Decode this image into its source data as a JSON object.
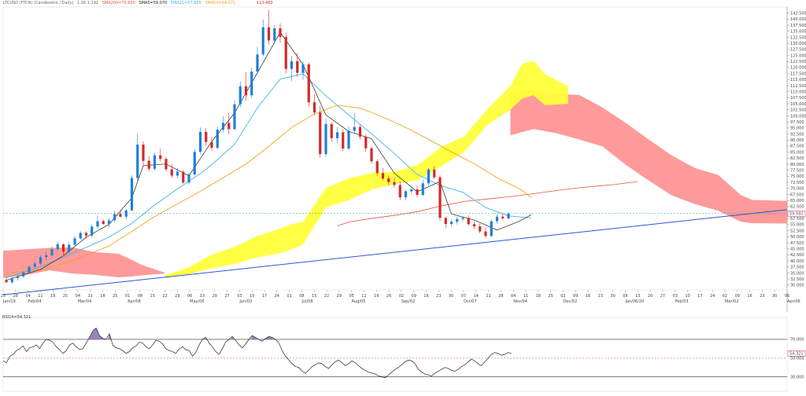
{
  "header": {
    "symbol": "LTCUSD (FTCN) (Candlestick / Daily)",
    "mode": "Daily",
    "info": "1:26 1:192",
    "sma200": "SMA200=70.600",
    "sma5": "SMA5=59.070",
    "ema21": "EMA21=57.805",
    "sma50": "SMA50=64.071",
    "price_label": "113.460"
  },
  "colors": {
    "up": "#1e7fd6",
    "down": "#d62728",
    "cloud_bull": "#ffff3a",
    "cloud_bear": "#ff8f8f",
    "sma200": "#e8523a",
    "sma50": "#f5a21b",
    "ema21": "#44b6e6",
    "sma5": "#222222",
    "trend": "#2a56d6",
    "rsi": "#222222"
  },
  "rsi_label": "RSI14=54.321",
  "last_price_tag": "59.592",
  "chart_data": {
    "type": "candlestick",
    "title": "",
    "ylim": [
      28,
      145
    ],
    "y_ticks": [
      "142.500",
      "140.000",
      "137.500",
      "135.000",
      "132.500",
      "130.000",
      "127.500",
      "125.000",
      "122.500",
      "120.000",
      "117.500",
      "115.000",
      "112.500",
      "110.000",
      "107.500",
      "105.000",
      "102.500",
      "100.000",
      "97.500",
      "95.000",
      "92.500",
      "90.000",
      "87.500",
      "85.000",
      "82.500",
      "80.000",
      "77.500",
      "75.000",
      "72.500",
      "70.000",
      "67.500",
      "65.000",
      "62.500",
      "60.000",
      "57.500",
      "55.000",
      "52.500",
      "50.000",
      "47.500",
      "45.000",
      "42.500",
      "40.000",
      "37.500",
      "35.000",
      "32.500",
      "30.000"
    ],
    "x_ticks": [
      "25",
      "28",
      "04",
      "11",
      "18",
      "25",
      "04",
      "11",
      "18",
      "25",
      "01",
      "08",
      "15",
      "22",
      "29",
      "06",
      "13",
      "20",
      "27",
      "03",
      "10",
      "17",
      "24",
      "01",
      "08",
      "15",
      "22",
      "29",
      "05",
      "12",
      "19",
      "26",
      "02",
      "09",
      "16",
      "23",
      "30",
      "07",
      "14",
      "21",
      "28",
      "04",
      "11",
      "18",
      "25",
      "02",
      "09",
      "16",
      "23",
      "30",
      "06",
      "13",
      "20",
      "27",
      "03",
      "10",
      "17",
      "24",
      "02",
      "09",
      "16",
      "23",
      "30",
      "06"
    ],
    "x_months": [
      {
        "label": "Jan/19",
        "i": 0
      },
      {
        "label": "Feb/04",
        "i": 2
      },
      {
        "label": "Mar/04",
        "i": 6
      },
      {
        "label": "Apr/08",
        "i": 10
      },
      {
        "label": "May/06",
        "i": 15
      },
      {
        "label": "Jun/03",
        "i": 19
      },
      {
        "label": "Jul/08",
        "i": 24
      },
      {
        "label": "Aug/05",
        "i": 28
      },
      {
        "label": "Sep/02",
        "i": 32
      },
      {
        "label": "Oct/07",
        "i": 37
      },
      {
        "label": "Nov/04",
        "i": 41
      },
      {
        "label": "Dec/02",
        "i": 45
      },
      {
        "label": "Jan/06/20",
        "i": 50
      },
      {
        "label": "Feb/03",
        "i": 54
      },
      {
        "label": "Mar/02",
        "i": 58
      },
      {
        "label": "Apr/06",
        "i": 63
      }
    ],
    "candles": [
      [
        32.1,
        33.4,
        30.8,
        31.2
      ],
      [
        31.2,
        33.5,
        30.5,
        32.9
      ],
      [
        32.9,
        34.2,
        31.8,
        33.6
      ],
      [
        33.6,
        35.8,
        33.2,
        35.3
      ],
      [
        35.3,
        38.2,
        34.6,
        37.6
      ],
      [
        37.6,
        39.8,
        36.9,
        38.9
      ],
      [
        38.9,
        42.3,
        38.1,
        41.6
      ],
      [
        41.6,
        43.8,
        40.2,
        42.3
      ],
      [
        42.3,
        45.9,
        41.5,
        44.8
      ],
      [
        44.8,
        48.1,
        44.1,
        46.9
      ],
      [
        46.9,
        47.2,
        42.5,
        43.8
      ],
      [
        43.8,
        47.8,
        43.0,
        46.7
      ],
      [
        46.7,
        50.4,
        45.9,
        49.3
      ],
      [
        49.3,
        52.4,
        48.7,
        51.6
      ],
      [
        51.6,
        52.3,
        49.2,
        50.5
      ],
      [
        50.5,
        55.1,
        49.8,
        54.2
      ],
      [
        54.2,
        58.8,
        53.1,
        56.4
      ],
      [
        56.4,
        57.2,
        54.8,
        55.3
      ],
      [
        55.3,
        57.6,
        53.9,
        56.8
      ],
      [
        56.8,
        60.8,
        56.1,
        59.4
      ],
      [
        59.4,
        61.2,
        57.9,
        58.3
      ],
      [
        58.3,
        61.5,
        57.1,
        60.9
      ],
      [
        60.9,
        75.4,
        60.5,
        74.3
      ],
      [
        74.3,
        92.6,
        72.9,
        88.1
      ],
      [
        88.1,
        89.4,
        79.3,
        81.4
      ],
      [
        81.4,
        83.2,
        77.2,
        78.1
      ],
      [
        78.1,
        84.8,
        77.4,
        83.7
      ],
      [
        83.7,
        86.4,
        81.2,
        82.2
      ],
      [
        82.2,
        83.1,
        77.1,
        77.9
      ],
      [
        77.9,
        80.1,
        74.2,
        75.3
      ],
      [
        75.3,
        78.4,
        74.1,
        76.9
      ],
      [
        76.9,
        77.6,
        71.8,
        72.4
      ],
      [
        72.4,
        76.6,
        71.7,
        75.8
      ],
      [
        75.8,
        86.3,
        75.2,
        85.1
      ],
      [
        85.1,
        95.2,
        84.3,
        93.4
      ],
      [
        93.4,
        94.8,
        87.8,
        89.2
      ],
      [
        89.2,
        91.4,
        85.6,
        86.8
      ],
      [
        86.8,
        95.6,
        86.1,
        94.3
      ],
      [
        94.3,
        99.8,
        93.1,
        97.1
      ],
      [
        97.1,
        101.2,
        92.3,
        94.5
      ],
      [
        94.5,
        106.6,
        94.1,
        104.8
      ],
      [
        104.8,
        114.2,
        103.6,
        112.2
      ],
      [
        112.2,
        118.1,
        106.2,
        108.5
      ],
      [
        108.5,
        119.8,
        107.4,
        118.3
      ],
      [
        118.3,
        128.6,
        117.2,
        125.4
      ],
      [
        125.4,
        139.9,
        124.6,
        136.6
      ],
      [
        136.6,
        143.8,
        129.5,
        131.2
      ],
      [
        131.2,
        137.6,
        130.4,
        136.2
      ],
      [
        136.2,
        138.3,
        130.2,
        132.6
      ],
      [
        132.6,
        134.5,
        117.5,
        119.4
      ],
      [
        119.4,
        124.8,
        114.3,
        122.6
      ],
      [
        122.6,
        126.1,
        116.2,
        117.8
      ],
      [
        117.8,
        122.5,
        114.8,
        121.3
      ],
      [
        121.3,
        122.1,
        103.8,
        105.6
      ],
      [
        105.6,
        108.9,
        100.1,
        101.4
      ],
      [
        101.4,
        104.1,
        82.6,
        84.2
      ],
      [
        84.2,
        98.8,
        83.1,
        96.6
      ],
      [
        96.6,
        97.4,
        89.2,
        90.8
      ],
      [
        90.8,
        95.3,
        88.6,
        93.2
      ],
      [
        93.2,
        94.5,
        85.4,
        86.5
      ],
      [
        86.5,
        95.6,
        85.7,
        93.8
      ],
      [
        93.8,
        101.3,
        92.6,
        95.4
      ],
      [
        95.4,
        96.2,
        90.1,
        91.4
      ],
      [
        91.4,
        92.5,
        85.1,
        86.6
      ],
      [
        86.6,
        87.3,
        80.3,
        81.2
      ],
      [
        81.2,
        82.1,
        75.1,
        76.3
      ],
      [
        76.3,
        78.4,
        73.2,
        74.1
      ],
      [
        74.1,
        75.3,
        71.2,
        72.6
      ],
      [
        72.6,
        74.4,
        70.1,
        71.4
      ],
      [
        71.4,
        72.9,
        65.2,
        66.3
      ],
      [
        66.3,
        69.5,
        65.1,
        68.8
      ],
      [
        68.8,
        70.7,
        67.6,
        69.6
      ],
      [
        69.6,
        71.4,
        66.2,
        67.3
      ],
      [
        67.3,
        73.5,
        66.8,
        72.1
      ],
      [
        72.1,
        78.4,
        71.2,
        77.8
      ],
      [
        77.8,
        79.2,
        73.8,
        74.6
      ],
      [
        74.6,
        75.5,
        56.6,
        57.8
      ],
      [
        57.8,
        58.4,
        53.5,
        55.3
      ],
      [
        55.3,
        57.1,
        54.2,
        56.2
      ],
      [
        56.2,
        58.2,
        55.1,
        57.3
      ],
      [
        57.3,
        58.5,
        56.4,
        57.8
      ],
      [
        57.8,
        58.9,
        54.6,
        55.2
      ],
      [
        55.2,
        56.4,
        53.1,
        54.3
      ],
      [
        54.3,
        55.5,
        51.4,
        52.2
      ],
      [
        52.2,
        54.1,
        49.5,
        50.3
      ],
      [
        50.3,
        57.2,
        49.8,
        56.4
      ],
      [
        56.4,
        59.2,
        55.4,
        58.3
      ],
      [
        58.3,
        59.6,
        56.9,
        57.6
      ],
      [
        57.6,
        60.2,
        57.1,
        59.6
      ]
    ],
    "candle_x0": 8,
    "candle_dx": 7.25,
    "trendline": [
      [
        0,
        26
      ],
      [
        88,
        61.2
      ]
    ],
    "sma200": [
      [
        38,
        54.5
      ],
      [
        40,
        56.1
      ],
      [
        44,
        57.6
      ],
      [
        48,
        58.9
      ],
      [
        52,
        60.4
      ],
      [
        56,
        62.8
      ],
      [
        60,
        64.6
      ],
      [
        64,
        65.6
      ],
      [
        68,
        66.6
      ],
      [
        72,
        67.8
      ],
      [
        76,
        69.1
      ],
      [
        80,
        70.3
      ],
      [
        86,
        71.6
      ],
      [
        90,
        72.8
      ]
    ],
    "sma50": [
      [
        0,
        35
      ],
      [
        6,
        36.2
      ],
      [
        12,
        40.4
      ],
      [
        18,
        46.2
      ],
      [
        22,
        52.2
      ],
      [
        26,
        58.4
      ],
      [
        30,
        63.6
      ],
      [
        34,
        68.8
      ],
      [
        38,
        74.4
      ],
      [
        42,
        80.1
      ],
      [
        46,
        87.4
      ],
      [
        50,
        95.2
      ],
      [
        54,
        100.8
      ],
      [
        58,
        104.4
      ],
      [
        62,
        103.2
      ],
      [
        66,
        99.5
      ],
      [
        70,
        95.2
      ],
      [
        74,
        90.3
      ],
      [
        78,
        85.1
      ],
      [
        82,
        80.2
      ],
      [
        86,
        74.4
      ],
      [
        90,
        69.8
      ],
      [
        92,
        66.3
      ]
    ],
    "ema21": [
      [
        0,
        33
      ],
      [
        6,
        37.6
      ],
      [
        12,
        43.5
      ],
      [
        18,
        49.8
      ],
      [
        22,
        55.6
      ],
      [
        26,
        63.1
      ],
      [
        30,
        69.8
      ],
      [
        34,
        76.1
      ],
      [
        36,
        79.8
      ],
      [
        40,
        88.2
      ],
      [
        44,
        103.3
      ],
      [
        48,
        115.2
      ],
      [
        52,
        117.4
      ],
      [
        56,
        108.3
      ],
      [
        60,
        100.4
      ],
      [
        64,
        92.6
      ],
      [
        68,
        84.4
      ],
      [
        72,
        75.8
      ],
      [
        76,
        71.2
      ],
      [
        80,
        68.4
      ],
      [
        84,
        62.1
      ],
      [
        88,
        58.6
      ],
      [
        92,
        57.8
      ]
    ],
    "sma5": [
      [
        0,
        32
      ],
      [
        6,
        36.5
      ],
      [
        10,
        42.1
      ],
      [
        14,
        49.8
      ],
      [
        18,
        55.1
      ],
      [
        22,
        66.1
      ],
      [
        24,
        79.4
      ],
      [
        28,
        80.1
      ],
      [
        32,
        75.2
      ],
      [
        36,
        89.4
      ],
      [
        40,
        101.2
      ],
      [
        44,
        117.8
      ],
      [
        48,
        134.6
      ],
      [
        52,
        121.2
      ],
      [
        56,
        100.4
      ],
      [
        60,
        93.6
      ],
      [
        64,
        90.5
      ],
      [
        68,
        76.3
      ],
      [
        72,
        68.6
      ],
      [
        76,
        72.8
      ],
      [
        78,
        59.4
      ],
      [
        82,
        56.9
      ],
      [
        86,
        52.8
      ],
      [
        90,
        56.5
      ],
      [
        92,
        59.1
      ]
    ],
    "cloud_bear": [
      [
        0,
        44.2,
        33.0
      ],
      [
        4,
        44.8,
        34.2
      ],
      [
        8,
        45.4,
        36.1
      ],
      [
        12,
        45.6,
        34.8
      ],
      [
        16,
        43.6,
        34.2
      ],
      [
        20,
        43.0,
        33.2
      ],
      [
        22,
        40.8,
        33.5
      ],
      [
        24,
        38.4,
        34.0
      ],
      [
        28,
        35.2,
        34.8
      ],
      [
        88,
        110,
        92
      ],
      [
        92,
        110.8,
        94.6
      ],
      [
        96,
        109.2,
        92.8
      ],
      [
        100,
        108.6,
        90.2
      ],
      [
        104,
        103.4,
        87.3
      ],
      [
        108,
        97.1,
        79.8
      ],
      [
        112,
        90.2,
        73.2
      ],
      [
        116,
        83.6,
        67.1
      ],
      [
        120,
        78.4,
        63.5
      ],
      [
        124,
        75.6,
        60.8
      ],
      [
        128,
        67.2,
        56.2
      ],
      [
        130,
        65.2,
        55.6
      ],
      [
        136,
        64.8,
        55.5
      ]
    ],
    "cloud_bull": [
      [
        28,
        34.0,
        32.8
      ],
      [
        32,
        37.1,
        34.4
      ],
      [
        36,
        42.4,
        36.9
      ],
      [
        40,
        45.6,
        38.6
      ],
      [
        44,
        50.2,
        41.4
      ],
      [
        48,
        53.3,
        43.2
      ],
      [
        50,
        55.2,
        44.8
      ],
      [
        52,
        56.1,
        46.8
      ],
      [
        56,
        70.2,
        62.1
      ],
      [
        60,
        74.1,
        65.2
      ],
      [
        64,
        76.4,
        69.6
      ],
      [
        68,
        76.9,
        71.8
      ],
      [
        72,
        79.7,
        73.5
      ],
      [
        76,
        87.2,
        79.2
      ],
      [
        80,
        91.5,
        85.2
      ],
      [
        84,
        102.8,
        96.3
      ],
      [
        88,
        112.4,
        102.6
      ],
      [
        90,
        121.5,
        107.1
      ],
      [
        92,
        122.8,
        108.5
      ],
      [
        94,
        117.2,
        104.4
      ],
      [
        98,
        112.2,
        105.0
      ]
    ],
    "rsi_ylim": [
      18,
      90
    ],
    "rsi_levels": [
      70,
      50,
      30
    ],
    "rsi": [
      47,
      45,
      52,
      54,
      58,
      60,
      63,
      57,
      61,
      62,
      64,
      60,
      66,
      70,
      69,
      67,
      62,
      59,
      55,
      58,
      64,
      66,
      62,
      59,
      60,
      66,
      72,
      79,
      82,
      74,
      71,
      70,
      76,
      64,
      61,
      60,
      58,
      55,
      57,
      61,
      63,
      67,
      66,
      62,
      60,
      64,
      69,
      68,
      65,
      60,
      58,
      57,
      55,
      60,
      62,
      59,
      58,
      52,
      56,
      64,
      70,
      72,
      66,
      62,
      57,
      54,
      60,
      67,
      70,
      73,
      69,
      64,
      61,
      65,
      70,
      74,
      72,
      70,
      68,
      71,
      73,
      72,
      70,
      66,
      58,
      52,
      48,
      44,
      41,
      40,
      36,
      34,
      37,
      41,
      43,
      45,
      44,
      41,
      39,
      43,
      46,
      48,
      45,
      42,
      44,
      47,
      45,
      42,
      39,
      37,
      35,
      34,
      33,
      31,
      30,
      29,
      32,
      35,
      38,
      40,
      43,
      46,
      48,
      47,
      44,
      38,
      35,
      33,
      32,
      31,
      34,
      36,
      38,
      40,
      39,
      37,
      36,
      38,
      41,
      43,
      46,
      49,
      47,
      44,
      42,
      46,
      50,
      54,
      56,
      55,
      53,
      54,
      56,
      55
    ],
    "rsi_dx": 4.22
  }
}
